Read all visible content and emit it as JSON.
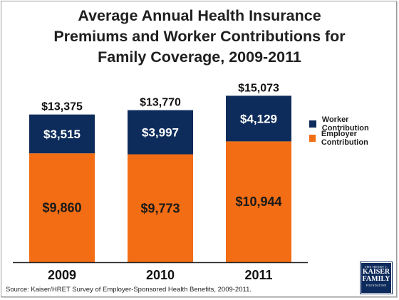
{
  "slide": {
    "title_lines": [
      "Average Annual Health Insurance",
      "Premiums and Worker Contributions for",
      "Family Coverage, 2009-2011"
    ],
    "source": "Source:  Kaiser/HRET Survey of Employer-Sponsored Health Benefits, 2009-2011.",
    "logo": {
      "top": "THE HENRY J.",
      "line1": "KAISER",
      "line2": "FAMILY",
      "bottom": "FOUNDATION"
    }
  },
  "chart_data": {
    "type": "bar",
    "stacked": true,
    "title": "Average Annual Health Insurance Premiums and Worker Contributions for Family Coverage, 2009-2011",
    "categories": [
      "2009",
      "2010",
      "2011"
    ],
    "series": [
      {
        "name": "Employer Contribution",
        "values": [
          9860,
          9773,
          10944
        ],
        "labels": [
          "$9,860",
          "$9,773",
          "$10,944"
        ],
        "color": "#f26d14",
        "text_color": "#1a1a1a"
      },
      {
        "name": "Worker Contribution",
        "values": [
          3515,
          3997,
          4129
        ],
        "labels": [
          "$3,515",
          "$3,997",
          "$4,129"
        ],
        "color": "#0d2c5b",
        "text_color": "#ffffff"
      }
    ],
    "totals": [
      13375,
      13770,
      15073
    ],
    "total_labels": [
      "$13,375",
      "$13,770",
      "$15,073"
    ],
    "legend_order": [
      "Worker Contribution",
      "Employer Contribution"
    ],
    "legend_position": "right",
    "ylim": [
      0,
      16000
    ],
    "grid": false,
    "xlabel": "",
    "ylabel": ""
  }
}
